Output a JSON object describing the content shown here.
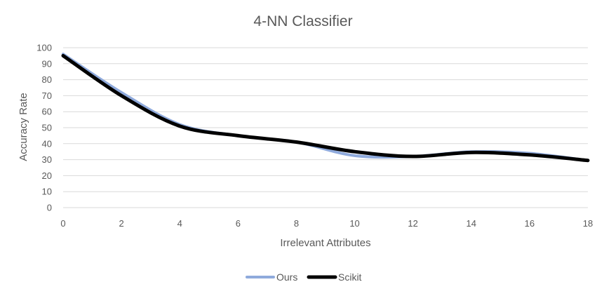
{
  "chart_data": {
    "type": "line",
    "title": "4-NN Classifier",
    "xlabel": "Irrelevant Attributes",
    "ylabel": "Accuracy Rate",
    "xlim": [
      0,
      18
    ],
    "ylim": [
      0,
      100
    ],
    "x_ticks": [
      "0",
      "2",
      "4",
      "6",
      "8",
      "10",
      "12",
      "14",
      "16",
      "18"
    ],
    "y_ticks": [
      "0",
      "10",
      "20",
      "30",
      "40",
      "50",
      "60",
      "70",
      "80",
      "90",
      "100"
    ],
    "grid": true,
    "legend_position": "bottom",
    "x": [
      0,
      2,
      4,
      6,
      8,
      10,
      12,
      14,
      16,
      18
    ],
    "series": [
      {
        "name": "Ours",
        "color": "#8faadc",
        "values": [
          96,
          72,
          52,
          45,
          41,
          32.5,
          32,
          35,
          34,
          29.5
        ]
      },
      {
        "name": "Scikit",
        "color": "#000000",
        "values": [
          95,
          70,
          51,
          45,
          41,
          35,
          32,
          34.5,
          33,
          29.5
        ]
      }
    ]
  }
}
